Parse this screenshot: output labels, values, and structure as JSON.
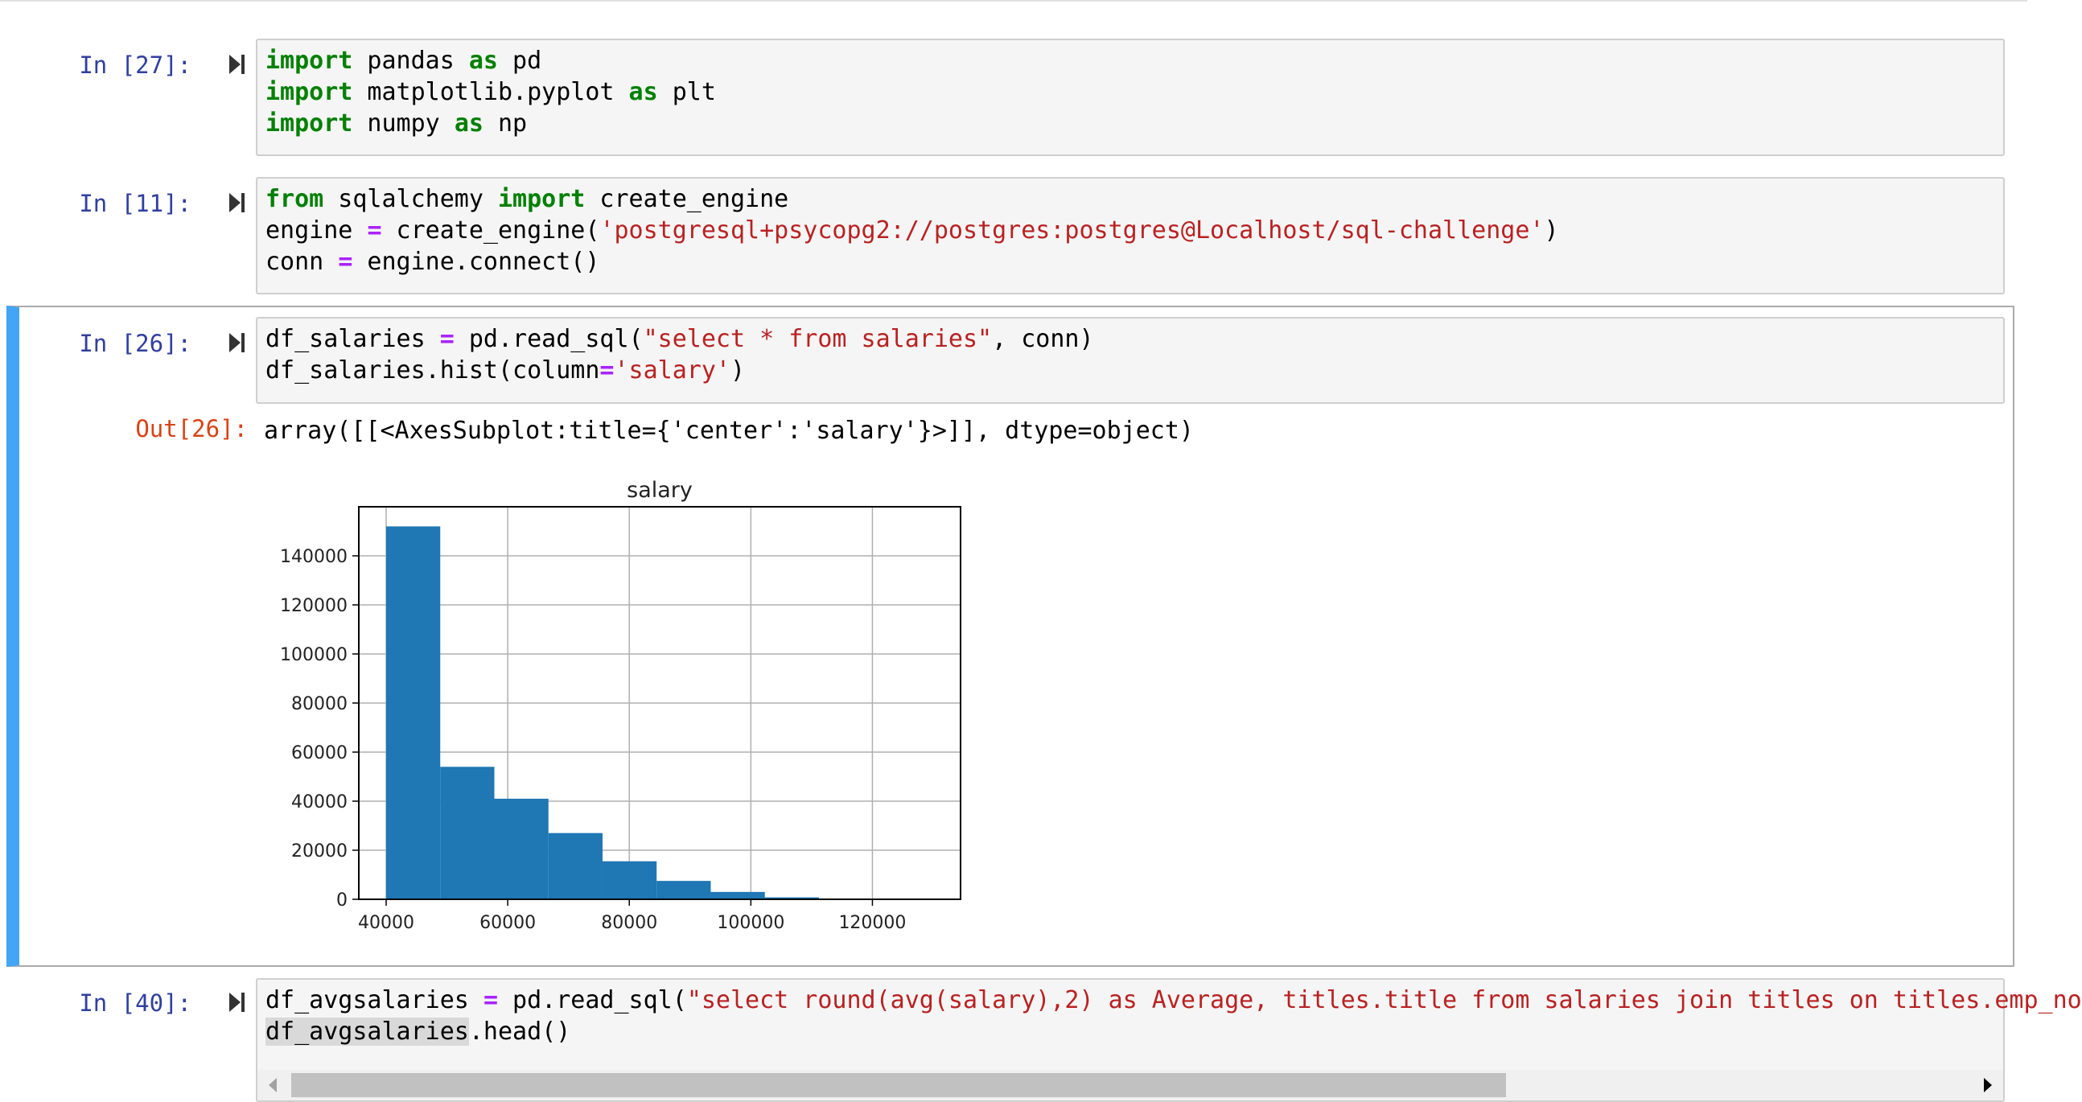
{
  "cells": [
    {
      "prompt": "In [27]:",
      "lines": [
        [
          [
            "kw",
            "import"
          ],
          [
            "t",
            " pandas "
          ],
          [
            "kw",
            "as"
          ],
          [
            "t",
            " pd"
          ]
        ],
        [
          [
            "kw",
            "import"
          ],
          [
            "t",
            " matplotlib.pyplot "
          ],
          [
            "kw",
            "as"
          ],
          [
            "t",
            " plt"
          ]
        ],
        [
          [
            "kw",
            "import"
          ],
          [
            "t",
            " numpy "
          ],
          [
            "kw",
            "as"
          ],
          [
            "t",
            " np"
          ]
        ]
      ]
    },
    {
      "prompt": "In [11]:",
      "lines": [
        [
          [
            "kw",
            "from"
          ],
          [
            "t",
            " sqlalchemy "
          ],
          [
            "kw",
            "import"
          ],
          [
            "t",
            " create_engine"
          ]
        ],
        [
          [
            "t",
            "engine "
          ],
          [
            "op",
            "="
          ],
          [
            "t",
            " create_engine("
          ],
          [
            "str",
            "'postgresql+psycopg2://postgres:postgres@Localhost/sql-challenge'"
          ],
          [
            "t",
            ")"
          ]
        ],
        [
          [
            "t",
            "conn "
          ],
          [
            "op",
            "="
          ],
          [
            "t",
            " engine.connect()"
          ]
        ]
      ]
    },
    {
      "prompt": "In [26]:",
      "out_prompt": "Out[26]:",
      "out_text": "array([[<AxesSubplot:title={'center':'salary'}>]], dtype=object)",
      "lines": [
        [
          [
            "t",
            "df_salaries "
          ],
          [
            "op",
            "="
          ],
          [
            "t",
            " pd.read_sql("
          ],
          [
            "str",
            "\"select * from salaries\""
          ],
          [
            "t",
            ", conn)"
          ]
        ],
        [
          [
            "t",
            "df_salaries.hist(column"
          ],
          [
            "op",
            "="
          ],
          [
            "str",
            "'salary'"
          ],
          [
            "t",
            ")"
          ]
        ]
      ]
    },
    {
      "prompt": "In [40]:",
      "lines": [
        [
          [
            "t",
            "df_avgsalaries "
          ],
          [
            "op",
            "="
          ],
          [
            "t",
            " pd.read_sql("
          ],
          [
            "str",
            "\"select round(avg(salary),2) as Average, titles.title from salaries join titles on titles.emp_no"
          ]
        ],
        [
          [
            "hl",
            "df_avgsalaries"
          ],
          [
            "t",
            ".head()"
          ]
        ]
      ]
    }
  ],
  "chart_data": {
    "type": "bar",
    "title": "salary",
    "xlabel": "",
    "ylabel": "",
    "xlim": [
      35500,
      134500
    ],
    "ylim": [
      0,
      160000
    ],
    "xticks": [
      40000,
      60000,
      80000,
      100000,
      120000
    ],
    "yticks": [
      0,
      20000,
      40000,
      60000,
      80000,
      100000,
      120000,
      140000
    ],
    "grid": true,
    "bar_color": "#1f77b4",
    "bins": [
      {
        "x0": 40000,
        "x1": 48900,
        "value": 152000
      },
      {
        "x0": 48900,
        "x1": 57800,
        "value": 54000
      },
      {
        "x0": 57800,
        "x1": 66700,
        "value": 41000
      },
      {
        "x0": 66700,
        "x1": 75600,
        "value": 27000
      },
      {
        "x0": 75600,
        "x1": 84500,
        "value": 15500
      },
      {
        "x0": 84500,
        "x1": 93400,
        "value": 7500
      },
      {
        "x0": 93400,
        "x1": 102300,
        "value": 3000
      },
      {
        "x0": 102300,
        "x1": 111200,
        "value": 800
      },
      {
        "x0": 111200,
        "x1": 120100,
        "value": 150
      },
      {
        "x0": 120100,
        "x1": 129000,
        "value": 20
      }
    ]
  }
}
